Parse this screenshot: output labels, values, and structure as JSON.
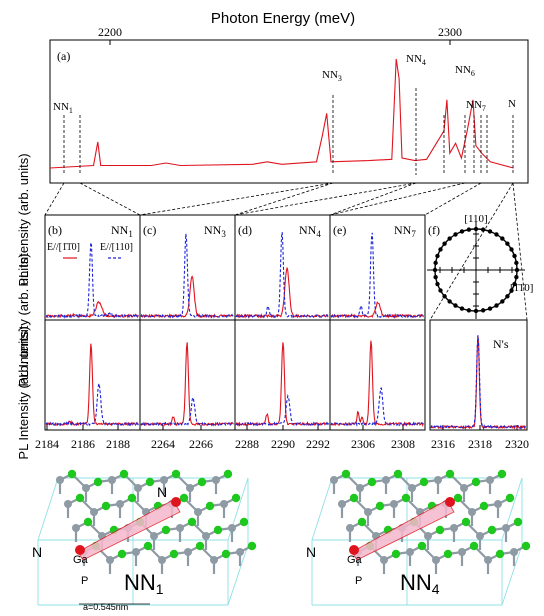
{
  "top_panel": {
    "xlabel": "Photon Energy (meV)",
    "ylabel": "PL Intensity (arb. units)",
    "panel_label": "(a)",
    "ticks": [
      "2200",
      "2300"
    ],
    "peak_labels": [
      {
        "base": "NN",
        "sub": "1"
      },
      {
        "base": "NN",
        "sub": "3"
      },
      {
        "base": "NN",
        "sub": "4"
      },
      {
        "base": "NN",
        "sub": "6"
      },
      {
        "base": "NN",
        "sub": "7"
      },
      {
        "base": "N",
        "sub": ""
      }
    ]
  },
  "lower_panels": {
    "ylabel": "PL Intensity (arb. units)",
    "panels": [
      {
        "label": "(b)",
        "name": "NN",
        "sub": "1",
        "ticks": [
          "2184",
          "2186",
          "2188"
        ]
      },
      {
        "label": "(c)",
        "name": "NN",
        "sub": "3",
        "ticks": [
          "2264",
          "2266"
        ]
      },
      {
        "label": "(d)",
        "name": "NN",
        "sub": "4",
        "ticks": [
          "2288",
          "2290",
          "2292"
        ]
      },
      {
        "label": "(e)",
        "name": "NN",
        "sub": "7",
        "ticks": [
          "2306",
          "2308"
        ]
      }
    ],
    "last_panel": {
      "label": "(f)",
      "name": "N's",
      "ticks": [
        "2316",
        "2318",
        "2320"
      ]
    },
    "legend": {
      "red": "E//[1̄1̄0]",
      "blue": "E//[110]"
    },
    "polar": {
      "top": "[110]",
      "right": "[1̄1̄0]"
    }
  },
  "structures": {
    "left": {
      "atom_n": "N",
      "atom_ga": "Ga",
      "atom_p": "P",
      "name": "NN",
      "sub": "1",
      "scale": "a=0.545nm"
    },
    "right": {
      "atom_n": "N",
      "atom_ga": "Ga",
      "atom_p": "P",
      "name": "NN",
      "sub": "4"
    }
  },
  "colors": {
    "red": "#e0141e",
    "blue": "#1a22d6",
    "green": "#1ec81e",
    "gray": "#8e9aa4",
    "pink": "#f5b8cc"
  },
  "chart_data": [
    {
      "type": "line",
      "title": "",
      "xlabel": "Photon Energy (meV)",
      "ylabel": "PL Intensity (arb. units)",
      "xlim": [
        2170,
        2335
      ],
      "ylim": [
        0,
        1.0
      ],
      "series": [
        {
          "values": [
            [
              2170,
              0.0
            ],
            [
              2185,
              0.02
            ],
            [
              2186.5,
              0.21
            ],
            [
              2187.5,
              0.02
            ],
            [
              2205,
              0.02
            ],
            [
              2210,
              0.04
            ],
            [
              2215,
              0.02
            ],
            [
              2240,
              0.03
            ],
            [
              2245,
              0.05
            ],
            [
              2250,
              0.03
            ],
            [
              2262,
              0.05
            ],
            [
              2264,
              0.26
            ],
            [
              2265.5,
              0.44
            ],
            [
              2267,
              0.05
            ],
            [
              2280,
              0.06
            ],
            [
              2288,
              0.07
            ],
            [
              2289.5,
              0.88
            ],
            [
              2290.5,
              0.72
            ],
            [
              2291.5,
              0.08
            ],
            [
              2296,
              0.06
            ],
            [
              2300,
              0.07
            ],
            [
              2306,
              0.3
            ],
            [
              2307,
              0.55
            ],
            [
              2308,
              0.12
            ],
            [
              2310,
              0.2
            ],
            [
              2312,
              0.08
            ],
            [
              2314,
              0.3
            ],
            [
              2316,
              0.55
            ],
            [
              2317,
              0.18
            ],
            [
              2319,
              0.12
            ],
            [
              2322,
              0.05
            ],
            [
              2330,
              0.0
            ]
          ]
        }
      ]
    },
    {
      "type": "line",
      "title": "",
      "xlabel": "",
      "ylabel": "PL Intensity (arb. units)",
      "xlim": [
        2184,
        2189.5
      ],
      "ylim": [
        0,
        1.0
      ],
      "series": [
        {
          "name": "E//[1̄1̄0]",
          "values": [
            [
              2184,
              0.04
            ],
            [
              2186.3,
              0.06
            ],
            [
              2186.6,
              0.28
            ],
            [
              2186.9,
              0.1
            ],
            [
              2189.5,
              0.04
            ]
          ]
        },
        {
          "name": "E//[110]",
          "values": [
            [
              2184,
              0.04
            ],
            [
              2186.0,
              0.05
            ],
            [
              2186.2,
              0.95
            ],
            [
              2186.4,
              0.05
            ],
            [
              2189.5,
              0.04
            ]
          ]
        }
      ]
    },
    {
      "type": "line",
      "title": "",
      "xlabel": "",
      "ylabel": "",
      "xlim": [
        2184,
        2189.5
      ],
      "ylim": [
        0,
        1.0
      ],
      "series": [
        {
          "name": "E//[1̄1̄0]",
          "values": [
            [
              2184,
              0.04
            ],
            [
              2186.2,
              0.05
            ],
            [
              2186.4,
              0.98
            ],
            [
              2186.6,
              0.05
            ],
            [
              2189.5,
              0.04
            ]
          ]
        },
        {
          "name": "E//[110]",
          "values": [
            [
              2184,
              0.04
            ],
            [
              2186.6,
              0.05
            ],
            [
              2186.85,
              0.5
            ],
            [
              2187.1,
              0.05
            ],
            [
              2189.5,
              0.04
            ]
          ]
        }
      ]
    }
  ]
}
